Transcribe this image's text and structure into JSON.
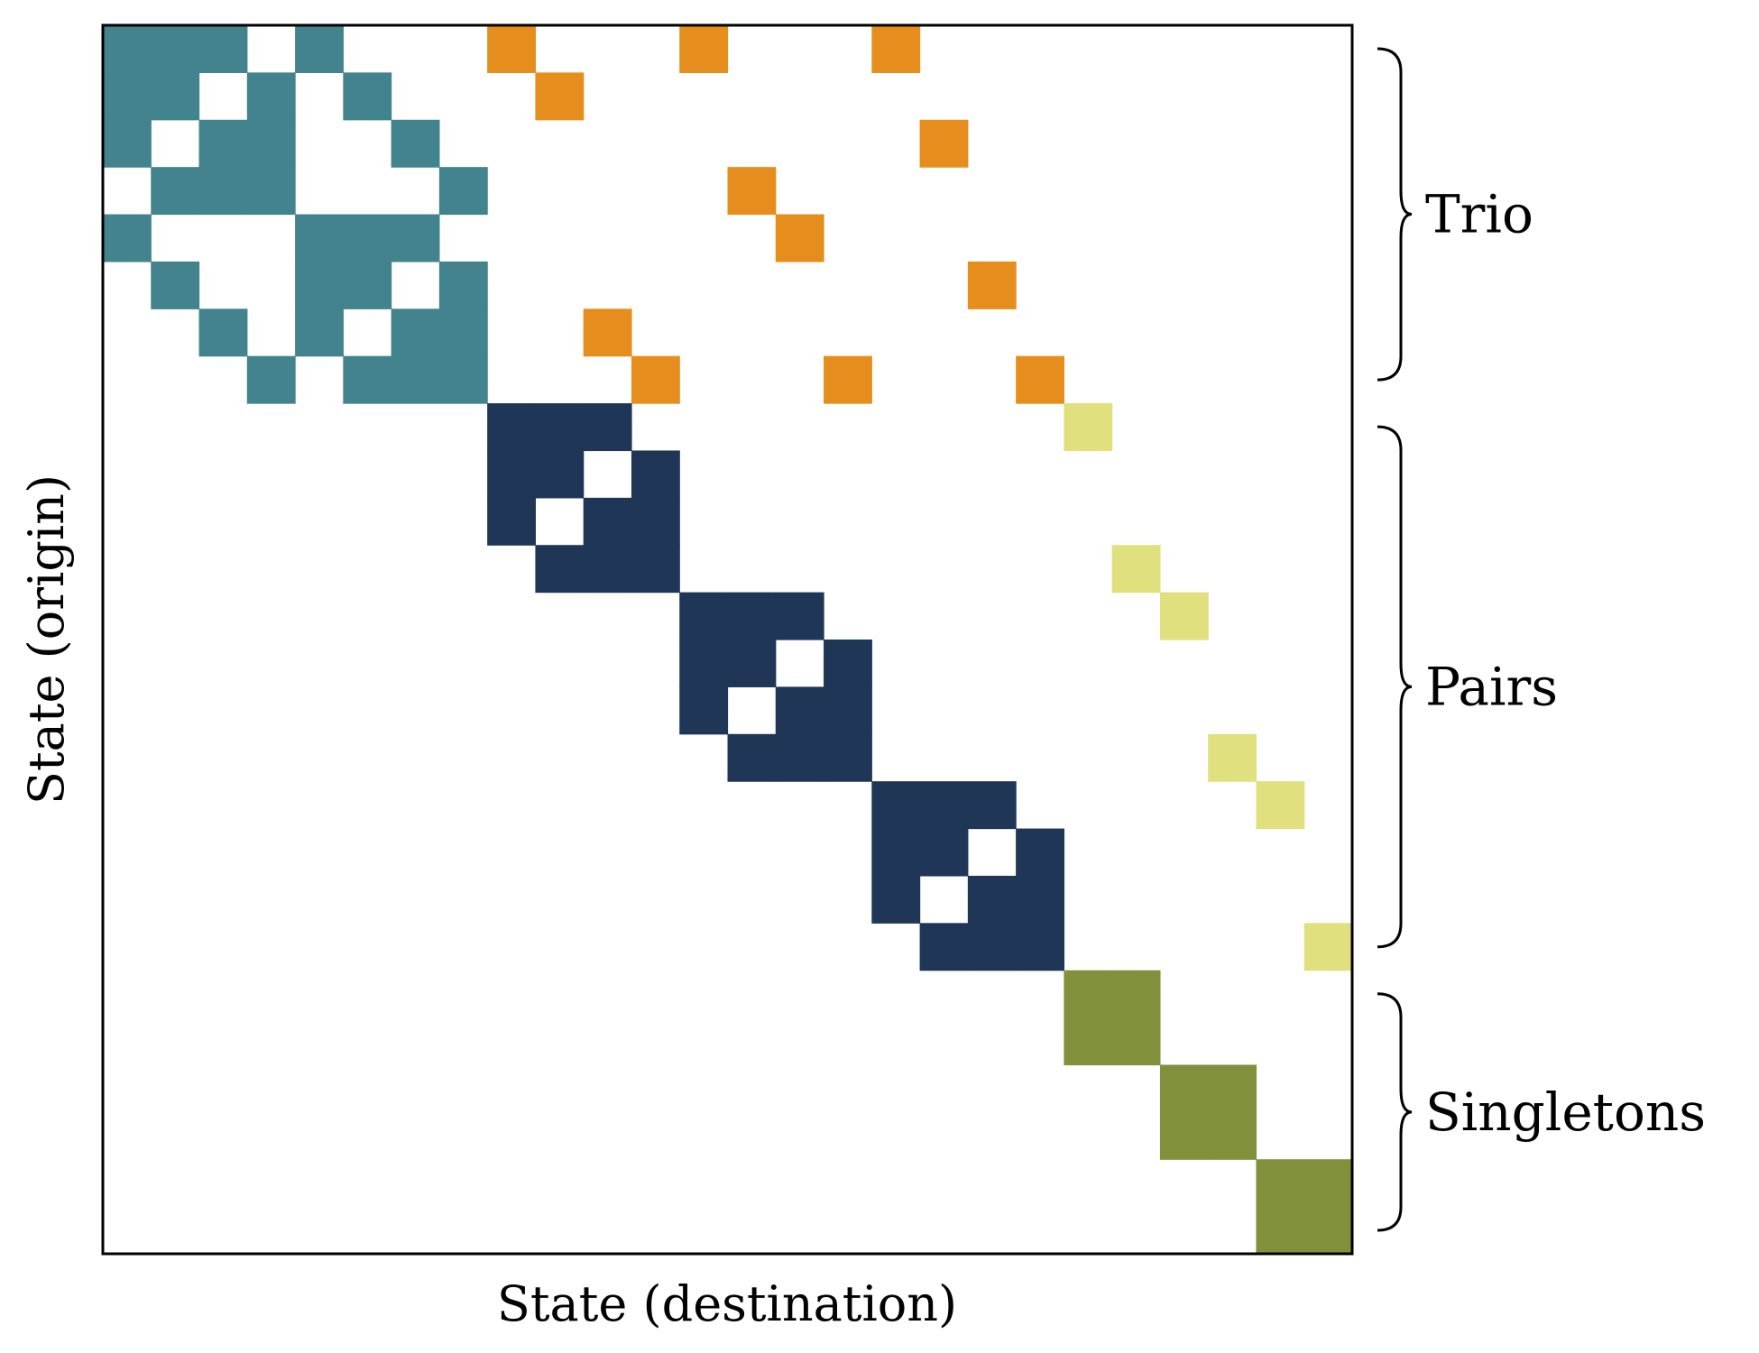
{
  "chart_data": {
    "type": "heatmap",
    "n_states": 26,
    "xlabel": "State (destination)",
    "ylabel": "State (origin)",
    "grid": false,
    "colors": {
      "trio_block": "#42838D",
      "pair_block": "#1F3657",
      "singleton_block": "#80903B",
      "trio_to_pair": "#E58E1E",
      "pair_to_singleton": "#E0E07E",
      "empty": "#FFFFFF"
    },
    "groups": [
      {
        "label": "Trio",
        "states": [
          0,
          7
        ]
      },
      {
        "label": "Pairs",
        "states": [
          8,
          19
        ]
      },
      {
        "label": "Singletons",
        "states": [
          20,
          25
        ]
      }
    ],
    "nonzero_cells": [
      {
        "category": "trio_block",
        "cells": [
          [
            0,
            0
          ],
          [
            0,
            1
          ],
          [
            0,
            2
          ],
          [
            0,
            4
          ],
          [
            1,
            0
          ],
          [
            1,
            1
          ],
          [
            1,
            3
          ],
          [
            1,
            5
          ],
          [
            2,
            0
          ],
          [
            2,
            2
          ],
          [
            2,
            3
          ],
          [
            2,
            6
          ],
          [
            3,
            1
          ],
          [
            3,
            2
          ],
          [
            3,
            3
          ],
          [
            3,
            7
          ],
          [
            4,
            0
          ],
          [
            4,
            4
          ],
          [
            4,
            5
          ],
          [
            4,
            6
          ],
          [
            5,
            1
          ],
          [
            5,
            4
          ],
          [
            5,
            5
          ],
          [
            5,
            7
          ],
          [
            6,
            2
          ],
          [
            6,
            4
          ],
          [
            6,
            6
          ],
          [
            6,
            7
          ],
          [
            7,
            3
          ],
          [
            7,
            5
          ],
          [
            7,
            6
          ],
          [
            7,
            7
          ]
        ]
      },
      {
        "category": "trio_to_pair",
        "cells": [
          [
            0,
            8
          ],
          [
            0,
            12
          ],
          [
            0,
            16
          ],
          [
            1,
            9
          ],
          [
            2,
            17
          ],
          [
            3,
            13
          ],
          [
            4,
            14
          ],
          [
            5,
            18
          ],
          [
            6,
            10
          ],
          [
            7,
            11
          ],
          [
            7,
            15
          ],
          [
            7,
            19
          ]
        ]
      },
      {
        "category": "pair_block",
        "cells": [
          [
            8,
            8
          ],
          [
            8,
            9
          ],
          [
            8,
            10
          ],
          [
            9,
            8
          ],
          [
            9,
            9
          ],
          [
            9,
            11
          ],
          [
            10,
            8
          ],
          [
            10,
            10
          ],
          [
            10,
            11
          ],
          [
            11,
            9
          ],
          [
            11,
            10
          ],
          [
            11,
            11
          ],
          [
            12,
            12
          ],
          [
            12,
            13
          ],
          [
            12,
            14
          ],
          [
            13,
            12
          ],
          [
            13,
            13
          ],
          [
            13,
            15
          ],
          [
            14,
            12
          ],
          [
            14,
            14
          ],
          [
            14,
            15
          ],
          [
            15,
            13
          ],
          [
            15,
            14
          ],
          [
            15,
            15
          ],
          [
            16,
            16
          ],
          [
            16,
            17
          ],
          [
            16,
            18
          ],
          [
            17,
            16
          ],
          [
            17,
            17
          ],
          [
            17,
            19
          ],
          [
            18,
            16
          ],
          [
            18,
            18
          ],
          [
            18,
            19
          ],
          [
            19,
            17
          ],
          [
            19,
            18
          ],
          [
            19,
            19
          ]
        ]
      },
      {
        "category": "pair_to_singleton",
        "cells": [
          [
            8,
            20
          ],
          [
            11,
            21
          ],
          [
            12,
            22
          ],
          [
            15,
            23
          ],
          [
            16,
            24
          ],
          [
            19,
            25
          ]
        ]
      },
      {
        "category": "singleton_block",
        "cells": [
          [
            20,
            20
          ],
          [
            20,
            21
          ],
          [
            21,
            20
          ],
          [
            21,
            21
          ],
          [
            22,
            22
          ],
          [
            22,
            23
          ],
          [
            23,
            22
          ],
          [
            23,
            23
          ],
          [
            24,
            24
          ],
          [
            24,
            25
          ],
          [
            25,
            24
          ],
          [
            25,
            25
          ]
        ]
      }
    ]
  }
}
